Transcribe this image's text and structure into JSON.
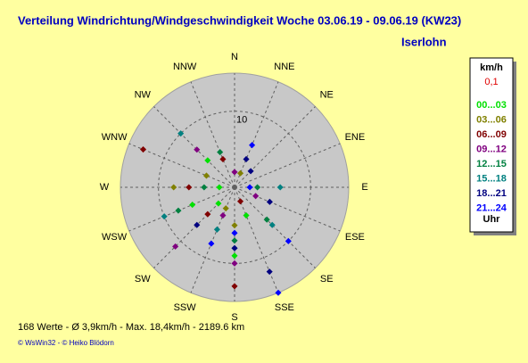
{
  "chart_data": {
    "type": "polar-scatter",
    "title": "Verteilung Windrichtung/Windgeschwindigkeit  Woche 03.06.19 - 09.06.19 (KW23)",
    "subtitle": "Iserlohn",
    "directions": [
      "N",
      "NNE",
      "NE",
      "ENE",
      "E",
      "ESE",
      "SE",
      "SSE",
      "S",
      "SSW",
      "SW",
      "WSW",
      "W",
      "WNW",
      "NW",
      "NNW"
    ],
    "rlim": [
      0,
      15
    ],
    "rticks": [
      10
    ],
    "legend_title": "km/h",
    "legend_subtitle": "0,1",
    "legend_footer": "Uhr",
    "series": [
      {
        "name": "00...03",
        "color": "#00e000",
        "dir": [
          "WSW",
          "SSE",
          "S",
          "NW",
          "SW",
          "W"
        ],
        "values": [
          6,
          4,
          9,
          5,
          3,
          2
        ]
      },
      {
        "name": "03...06",
        "color": "#808000",
        "dir": [
          "W",
          "WNW",
          "SSW",
          "NNE",
          "S"
        ],
        "values": [
          8,
          4,
          3,
          2,
          5
        ]
      },
      {
        "name": "06...09",
        "color": "#800000",
        "dir": [
          "WNW",
          "S",
          "SW",
          "W",
          "NNW",
          "SSE"
        ],
        "values": [
          13,
          13,
          5,
          6,
          4,
          2
        ]
      },
      {
        "name": "09...12",
        "color": "#800080",
        "dir": [
          "SW",
          "NW",
          "S",
          "SSW",
          "ESE",
          "N"
        ],
        "values": [
          11,
          7,
          10,
          4,
          3,
          2
        ]
      },
      {
        "name": "12...15",
        "color": "#008040",
        "dir": [
          "W",
          "WSW",
          "NNW",
          "S",
          "SE",
          "E"
        ],
        "values": [
          4,
          8,
          5,
          7,
          6,
          3
        ]
      },
      {
        "name": "15...18",
        "color": "#008080",
        "dir": [
          "NW",
          "WSW",
          "E",
          "SSW",
          "SE",
          "S"
        ],
        "values": [
          10,
          10,
          6,
          6,
          7,
          8
        ]
      },
      {
        "name": "18...21",
        "color": "#000080",
        "dir": [
          "SSE",
          "S",
          "NE",
          "ESE",
          "NNE",
          "SW"
        ],
        "values": [
          12,
          8,
          3,
          5,
          4,
          7
        ]
      },
      {
        "name": "21...24",
        "color": "#0000ff",
        "dir": [
          "SSE",
          "SE",
          "E",
          "NNE",
          "S",
          "SSW"
        ],
        "values": [
          15,
          10,
          2,
          6,
          6,
          8
        ]
      }
    ],
    "footer": "168 Werte   -   Ø 3,9km/h   -   Max. 18,4km/h   -   2189.6 km",
    "copyright": "© WsWin32  -  © Heiko Blödorn"
  }
}
